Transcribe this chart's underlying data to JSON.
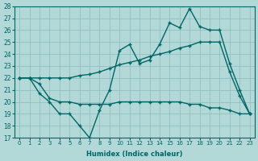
{
  "xlabel": "Humidex (Indice chaleur)",
  "bg_color": "#b2d8d8",
  "grid_color": "#8bbcbc",
  "line_color": "#006666",
  "xlim": [
    -0.5,
    23.5
  ],
  "ylim": [
    17,
    28
  ],
  "xticks": [
    0,
    1,
    2,
    3,
    4,
    5,
    6,
    7,
    8,
    9,
    10,
    11,
    12,
    13,
    14,
    15,
    16,
    17,
    18,
    19,
    20,
    21,
    22,
    23
  ],
  "yticks": [
    17,
    18,
    19,
    20,
    21,
    22,
    23,
    24,
    25,
    26,
    27,
    28
  ],
  "line1_x": [
    0,
    1,
    2,
    3,
    4,
    5,
    6,
    7,
    8,
    9,
    10,
    11,
    12,
    13,
    14,
    15,
    16,
    17,
    18,
    19,
    20,
    21,
    22,
    23
  ],
  "line1_y": [
    22,
    22,
    20.7,
    20.0,
    19.0,
    19.0,
    18.0,
    17.0,
    19.3,
    21.0,
    24.3,
    24.8,
    23.2,
    23.5,
    24.8,
    26.6,
    26.2,
    27.8,
    26.3,
    26.0,
    26.0,
    23.2,
    21.0,
    19.0
  ],
  "line2_x": [
    0,
    1,
    2,
    3,
    4,
    5,
    6,
    7,
    8,
    9,
    10,
    11,
    12,
    13,
    14,
    15,
    16,
    17,
    18,
    19,
    20,
    21,
    22,
    23
  ],
  "line2_y": [
    22,
    22,
    22,
    22,
    22,
    22,
    22.2,
    22.3,
    22.5,
    22.8,
    23.1,
    23.3,
    23.5,
    23.8,
    24.0,
    24.2,
    24.5,
    24.7,
    25.0,
    25.0,
    25.0,
    22.5,
    20.5,
    19.0
  ],
  "line3_x": [
    0,
    1,
    2,
    3,
    4,
    5,
    6,
    7,
    8,
    9,
    10,
    11,
    12,
    13,
    14,
    15,
    16,
    17,
    18,
    19,
    20,
    21,
    22,
    23
  ],
  "line3_y": [
    22,
    22,
    21.5,
    20.3,
    20.0,
    20.0,
    19.8,
    19.8,
    19.8,
    19.8,
    20.0,
    20.0,
    20.0,
    20.0,
    20.0,
    20.0,
    20.0,
    19.8,
    19.8,
    19.5,
    19.5,
    19.3,
    19.0,
    19.0
  ]
}
